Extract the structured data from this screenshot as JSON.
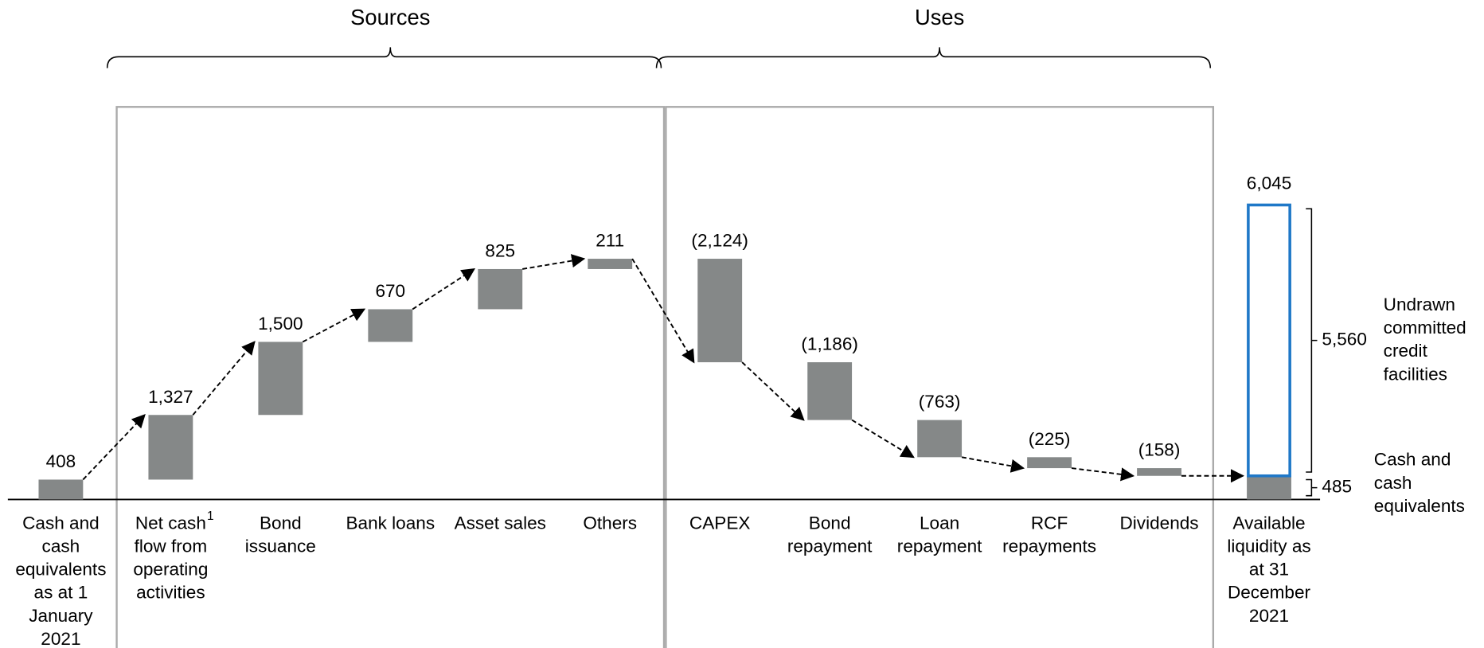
{
  "chart_data": {
    "type": "waterfall",
    "categories": [
      [
        "Cash and",
        "cash",
        "equivalents",
        "as at 1",
        "January",
        "2021"
      ],
      [
        "Net cash",
        "flow from",
        "operating",
        "activities"
      ],
      [
        "Bond",
        "issuance"
      ],
      [
        "Bank loans"
      ],
      [
        "Asset sales"
      ],
      [
        "Others"
      ],
      [
        "CAPEX"
      ],
      [
        "Bond",
        "repayment"
      ],
      [
        "Loan",
        "repayment"
      ],
      [
        "RCF",
        "repayments"
      ],
      [
        "Dividends"
      ]
    ],
    "footnote_mark": "1",
    "values": [
      408,
      1327,
      1500,
      670,
      825,
      211,
      -2124,
      -1186,
      -763,
      -225,
      -158
    ],
    "value_labels": [
      "408",
      "1,327",
      "1,500",
      "670",
      "825",
      "211",
      "(2,124)",
      "(1,186)",
      "(763)",
      "(225)",
      "(158)"
    ],
    "color": "#858888",
    "ylim": [
      0,
      7000
    ],
    "groups": [
      {
        "name": "Sources",
        "from": 1,
        "to": 5
      },
      {
        "name": "Uses",
        "from": 6,
        "to": 10
      }
    ],
    "total": {
      "category": [
        "Available",
        "liquidity as",
        "at 31",
        "December",
        "2021"
      ],
      "value": 6045,
      "value_label": "6,045",
      "segments": [
        {
          "name": [
            "Cash and",
            "cash",
            "equivalents"
          ],
          "value": 485,
          "value_label": "485",
          "color": "#858888",
          "style": "filled"
        },
        {
          "name": [
            "Undrawn",
            "committed",
            "credit",
            "facilities"
          ],
          "value": 5560,
          "value_label": "5,560",
          "color": "#1f78c8",
          "style": "outline"
        }
      ]
    }
  }
}
